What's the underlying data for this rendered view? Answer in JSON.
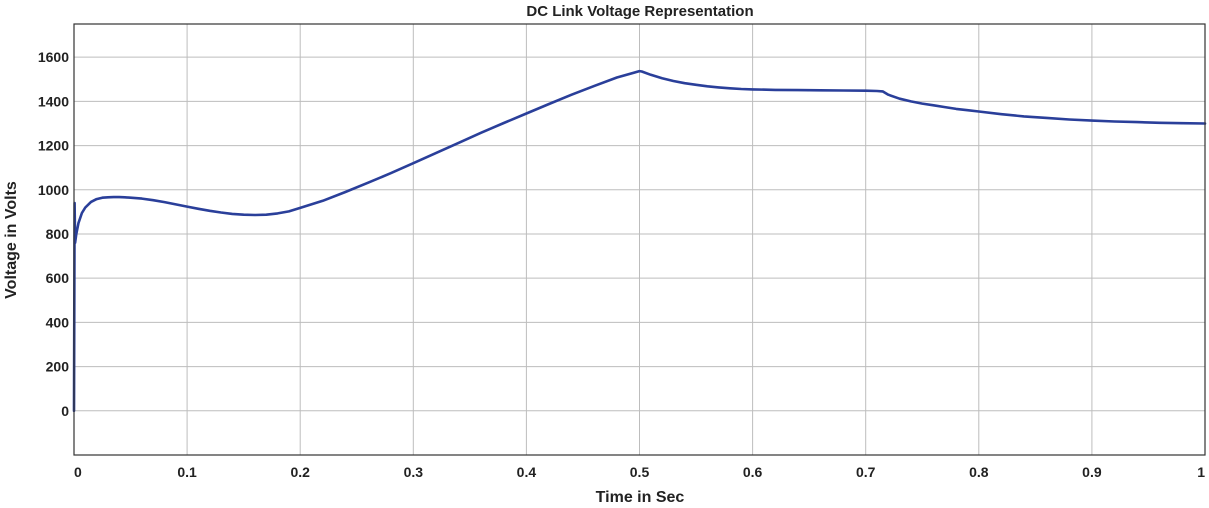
{
  "chart_data": {
    "type": "line",
    "title": "DC Link Voltage Representation",
    "xlabel": "Time in Sec",
    "ylabel": "Voltage in Volts",
    "xlim": [
      0,
      1
    ],
    "ylim": [
      -200,
      1750
    ],
    "xticks": [
      0,
      0.1,
      0.2,
      0.3,
      0.4,
      0.5,
      0.6,
      0.7,
      0.8,
      0.9,
      1
    ],
    "xtick_labels": [
      "0",
      "0.1",
      "0.2",
      "0.3",
      "0.4",
      "0.5",
      "0.6",
      "0.7",
      "0.8",
      "0.9",
      "1"
    ],
    "yticks": [
      0,
      200,
      400,
      600,
      800,
      1000,
      1200,
      1400,
      1600
    ],
    "ytick_labels": [
      "0",
      "200",
      "400",
      "600",
      "800",
      "1000",
      "1200",
      "1400",
      "1600"
    ],
    "grid": true,
    "series": [
      {
        "color": "#2a3f9a",
        "x": [
          0,
          0.0005,
          0.001,
          0.002,
          0.004,
          0.007,
          0.01,
          0.015,
          0.02,
          0.025,
          0.03,
          0.035,
          0.04,
          0.045,
          0.05,
          0.06,
          0.07,
          0.08,
          0.09,
          0.1,
          0.11,
          0.12,
          0.13,
          0.14,
          0.15,
          0.16,
          0.17,
          0.18,
          0.19,
          0.2,
          0.22,
          0.24,
          0.26,
          0.28,
          0.3,
          0.32,
          0.34,
          0.36,
          0.38,
          0.4,
          0.42,
          0.44,
          0.46,
          0.48,
          0.5,
          0.502,
          0.51,
          0.52,
          0.53,
          0.54,
          0.55,
          0.56,
          0.57,
          0.58,
          0.59,
          0.6,
          0.62,
          0.64,
          0.66,
          0.68,
          0.7,
          0.71,
          0.715,
          0.72,
          0.73,
          0.74,
          0.75,
          0.76,
          0.77,
          0.78,
          0.79,
          0.8,
          0.82,
          0.84,
          0.86,
          0.88,
          0.9,
          0.92,
          0.94,
          0.96,
          0.98,
          1.0
        ],
        "y": [
          0,
          940,
          760,
          800,
          850,
          895,
          920,
          945,
          958,
          964,
          966,
          967,
          967,
          966,
          964,
          960,
          953,
          944,
          934,
          924,
          914,
          905,
          897,
          891,
          887,
          886,
          887,
          893,
          902,
          918,
          950,
          990,
          1032,
          1075,
          1120,
          1166,
          1212,
          1258,
          1302,
          1345,
          1388,
          1430,
          1470,
          1508,
          1537,
          1535,
          1520,
          1505,
          1492,
          1482,
          1475,
          1468,
          1463,
          1459,
          1456,
          1454,
          1452,
          1451,
          1450,
          1449,
          1448,
          1447,
          1445,
          1430,
          1412,
          1400,
          1390,
          1382,
          1374,
          1366,
          1360,
          1354,
          1342,
          1332,
          1325,
          1318,
          1313,
          1309,
          1306,
          1303,
          1301,
          1300
        ]
      }
    ]
  }
}
